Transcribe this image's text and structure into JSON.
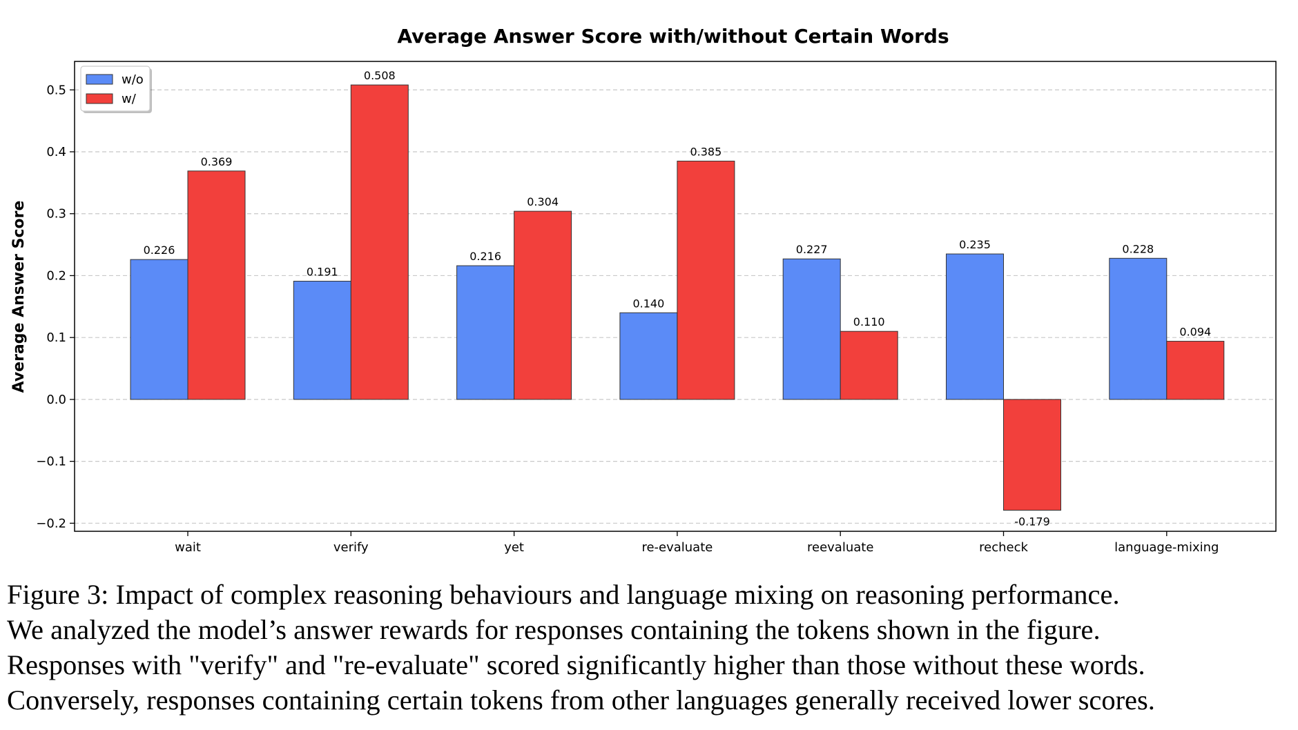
{
  "chart_data": {
    "type": "bar",
    "title": "Average Answer Score with/without Certain Words",
    "xlabel": "",
    "ylabel": "Average Answer Score",
    "categories": [
      "wait",
      "verify",
      "yet",
      "re-evaluate",
      "reevaluate",
      "recheck",
      "language-mixing"
    ],
    "series": [
      {
        "name": "w/o",
        "color": "#5b8bf7",
        "values": [
          0.226,
          0.191,
          0.216,
          0.14,
          0.227,
          0.235,
          0.228
        ],
        "labels": [
          "0.226",
          "0.191",
          "0.216",
          "0.140",
          "0.227",
          "0.235",
          "0.228"
        ]
      },
      {
        "name": "w/",
        "color": "#f2403c",
        "values": [
          0.369,
          0.508,
          0.304,
          0.385,
          0.11,
          -0.179,
          0.094
        ],
        "labels": [
          "0.369",
          "0.508",
          "0.304",
          "0.385",
          "0.110",
          "-0.179",
          "0.094"
        ]
      }
    ],
    "ylim": [
      -0.213,
      0.546
    ],
    "yticks": [
      -0.2,
      -0.1,
      0.0,
      0.1,
      0.2,
      0.3,
      0.4,
      0.5
    ],
    "ytick_labels": [
      "−0.2",
      "−0.1",
      "0.0",
      "0.1",
      "0.2",
      "0.3",
      "0.4",
      "0.5"
    ],
    "grid": "y-dashed",
    "legend_position": "top-left"
  },
  "caption": {
    "lines": [
      "Figure 3: Impact of complex reasoning behaviours and language mixing on reasoning performance.",
      "We analyzed the model’s answer rewards for responses containing the tokens shown in the figure.",
      "Responses with \"verify\" and \"re-evaluate\" scored significantly higher than those without these words.",
      "Conversely, responses containing certain tokens from other languages generally received lower scores."
    ]
  }
}
